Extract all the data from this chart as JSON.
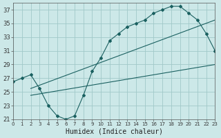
{
  "title": "",
  "xlabel": "Humidex (Indice chaleur)",
  "ylabel": "",
  "bg_color": "#cce8e8",
  "line_color": "#1a6060",
  "grid_color": "#a0c8c8",
  "xlim": [
    0,
    23
  ],
  "ylim": [
    21,
    38
  ],
  "xticks": [
    0,
    1,
    2,
    3,
    4,
    5,
    6,
    7,
    8,
    9,
    10,
    11,
    12,
    13,
    14,
    15,
    16,
    17,
    18,
    19,
    20,
    21,
    22,
    23
  ],
  "yticks": [
    21,
    23,
    25,
    27,
    29,
    31,
    33,
    35,
    37
  ],
  "line1_x": [
    0,
    1,
    2,
    3,
    4,
    5,
    6,
    7,
    8,
    9,
    10,
    11,
    12,
    13,
    14,
    15,
    16,
    17,
    18,
    19,
    20,
    21,
    22,
    23
  ],
  "line1_y": [
    26.5,
    27.0,
    27.5,
    25.5,
    23.0,
    21.5,
    21.0,
    21.5,
    24.5,
    28.0,
    30.0,
    32.5,
    33.5,
    34.5,
    35.0,
    35.5,
    36.5,
    37.0,
    37.5,
    37.5,
    36.5,
    35.5,
    33.5,
    31.0
  ],
  "line2_x": [
    2,
    23
  ],
  "line2_y": [
    25.5,
    35.5
  ],
  "line3_x": [
    2,
    23
  ],
  "line3_y": [
    24.5,
    29.0
  ]
}
